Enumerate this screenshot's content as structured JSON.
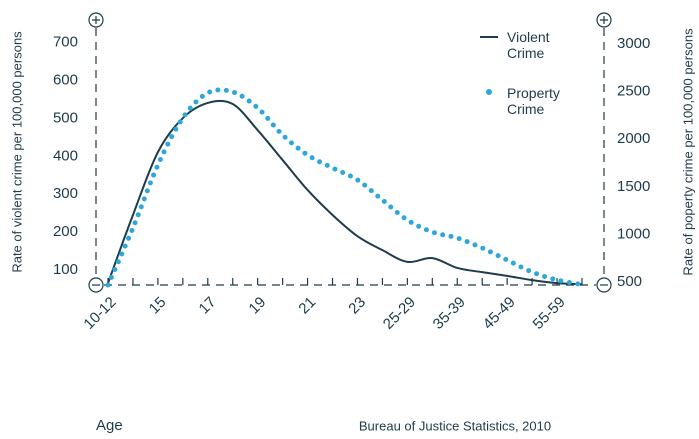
{
  "chart_data": {
    "type": "line",
    "y_label": "Rate of violent crime per 100,000 persons",
    "y2_label": "Rate of poperty crime per 100,000 persons",
    "x_label": "Age",
    "source": "Bureau of Justice Statistics, 2010",
    "categories": [
      "10-12",
      null,
      "15",
      null,
      "17",
      null,
      "19",
      null,
      "21",
      null,
      "23",
      null,
      "25-29",
      null,
      "35-39",
      null,
      "45-49",
      null,
      "55-59",
      null
    ],
    "series": [
      {
        "name": "Violent Crime",
        "color": "#1d3c4c",
        "style": "solid",
        "values": [
          65,
          245,
          411,
          501,
          541,
          538,
          469,
          390,
          311,
          245,
          189,
          152,
          121,
          131,
          105,
          94,
          84,
          73,
          65,
          62
        ]
      },
      {
        "name": "Property Crime",
        "color": "#29a8e0",
        "style": "dotted",
        "axis": "y2",
        "values": [
          470,
          1068,
          1729,
          2222,
          2485,
          2495,
          2327,
          2044,
          1834,
          1698,
          1572,
          1362,
          1152,
          1026,
          963,
          858,
          732,
          606,
          522,
          475
        ]
      }
    ],
    "ylim": [
      60,
      760
    ],
    "yticks": [
      100,
      200,
      300,
      400,
      500,
      600,
      700
    ],
    "y2lim": [
      470,
      3250
    ],
    "y2ticks": [
      500,
      1000,
      1500,
      2000,
      2500,
      3000
    ],
    "grid": false
  }
}
